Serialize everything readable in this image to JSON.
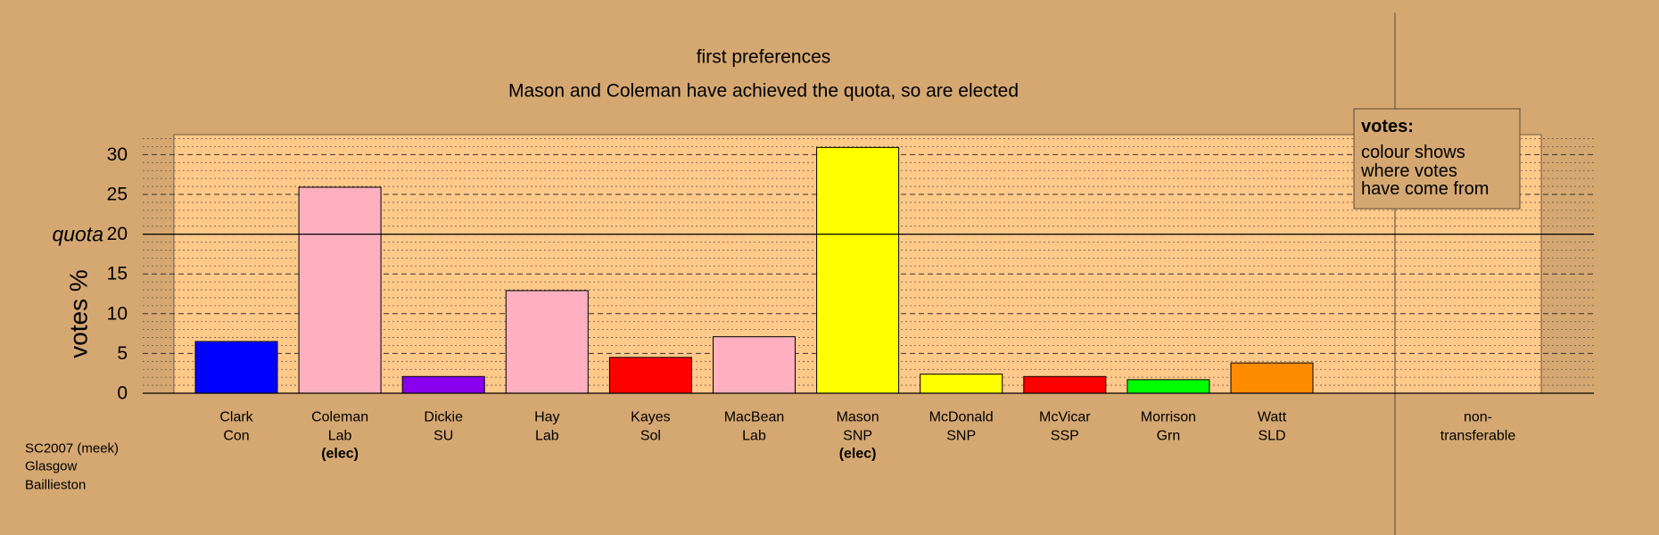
{
  "chart_data": {
    "type": "bar",
    "title": "first preferences",
    "subtitle": "Mason and Coleman have achieved the quota, so are elected",
    "ylabel": "votes %",
    "ylim": [
      0,
      32
    ],
    "yticks": [
      0,
      5,
      10,
      15,
      20,
      25,
      30
    ],
    "quota": {
      "label": "quota",
      "value": 20
    },
    "categories": [
      {
        "name": "Clark",
        "party": "Con",
        "value": 6.5,
        "color": "#0000ff",
        "elected": false
      },
      {
        "name": "Coleman",
        "party": "Lab",
        "value": 25.9,
        "color": "#ffb0c0",
        "elected": true
      },
      {
        "name": "Dickie",
        "party": "SU",
        "value": 2.1,
        "color": "#8800ee",
        "elected": false
      },
      {
        "name": "Hay",
        "party": "Lab",
        "value": 12.9,
        "color": "#ffb0c0",
        "elected": false
      },
      {
        "name": "Kayes",
        "party": "Sol",
        "value": 4.5,
        "color": "#ff0000",
        "elected": false
      },
      {
        "name": "MacBean",
        "party": "Lab",
        "value": 7.1,
        "color": "#ffb0c0",
        "elected": false
      },
      {
        "name": "Mason",
        "party": "SNP",
        "value": 30.9,
        "color": "#ffff00",
        "elected": true
      },
      {
        "name": "McDonald",
        "party": "SNP",
        "value": 2.4,
        "color": "#ffff00",
        "elected": false
      },
      {
        "name": "McVicar",
        "party": "SSP",
        "value": 2.1,
        "color": "#ff0000",
        "elected": false
      },
      {
        "name": "Morrison",
        "party": "Grn",
        "value": 1.7,
        "color": "#00ff00",
        "elected": false
      },
      {
        "name": "Watt",
        "party": "SLD",
        "value": 3.8,
        "color": "#ff8c00",
        "elected": false
      }
    ],
    "elected_label": "(elec)",
    "non_transferable": {
      "line1": "non-",
      "line2": "transferable"
    },
    "legend": {
      "title": "votes:",
      "lines": [
        "colour shows",
        "where votes",
        "have come from"
      ],
      "placement": "top-right"
    },
    "grid": true
  },
  "source": {
    "line1": "SC2007 (meek)",
    "line2": "Glasgow",
    "line3": "Baillieston"
  },
  "colors": {
    "background": "#d5a872",
    "plot_area": "#ffc98a"
  }
}
